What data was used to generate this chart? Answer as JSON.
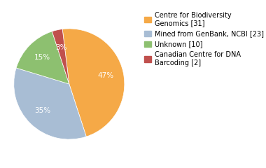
{
  "labels": [
    "Centre for Biodiversity\nGenomics [31]",
    "Mined from GenBank, NCBI [23]",
    "Unknown [10]",
    "Canadian Centre for DNA\nBarcoding [2]"
  ],
  "values": [
    46,
    34,
    15,
    3
  ],
  "colors": [
    "#F5A947",
    "#A8BDD4",
    "#8DC070",
    "#C0504D"
  ],
  "startangle": 97,
  "background_color": "#ffffff",
  "text_color": "#ffffff",
  "legend_fontsize": 7.0,
  "pct_fontsize": 7.5,
  "pctdistance": 0.68
}
